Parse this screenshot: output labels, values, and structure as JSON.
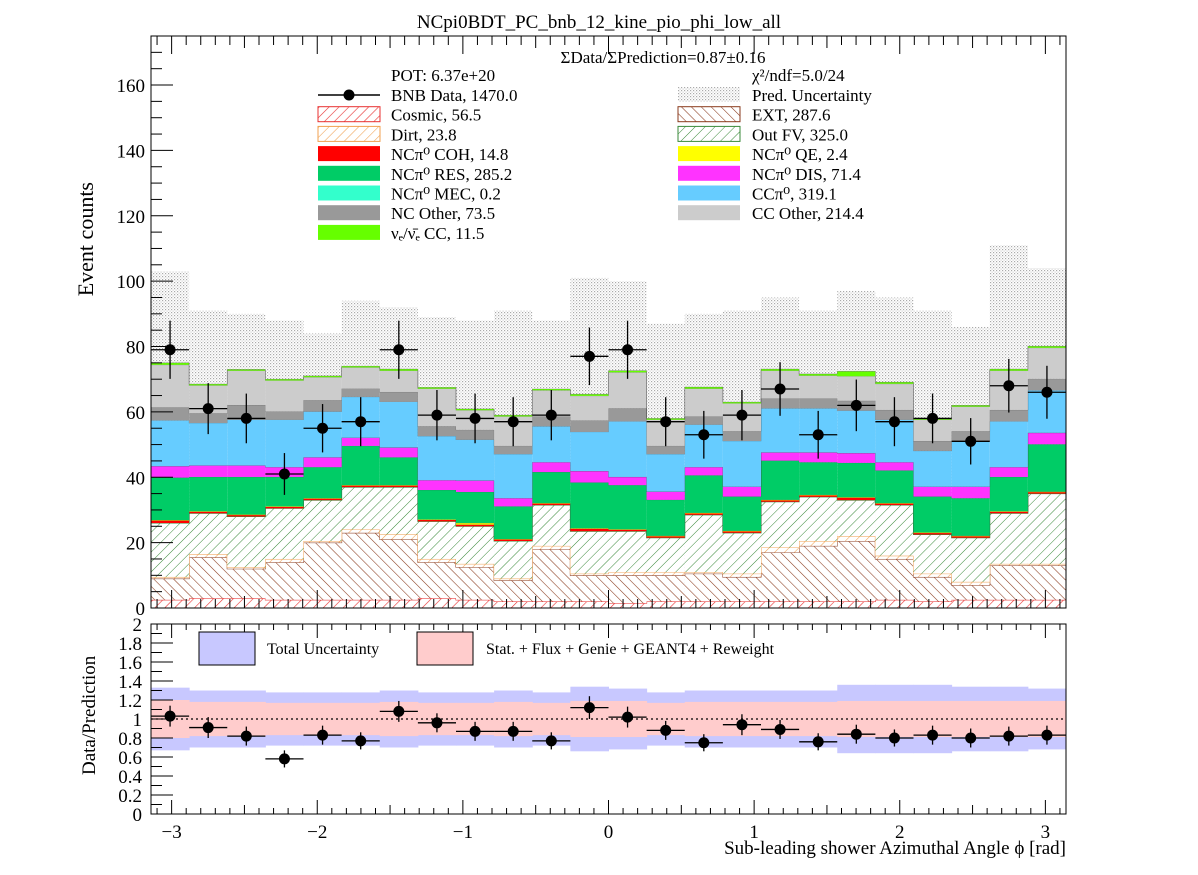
{
  "chart_data": [
    {
      "type": "bar",
      "title": "NCpi0BDT_PC_bnb_12_kine_pio_phi_low_all",
      "xlabel": "Sub-leading shower Azimuthal Angle ϕ [rad]",
      "ylabel": "Event counts",
      "xlim": [
        -3.1416,
        3.1416
      ],
      "ylim": [
        0,
        175
      ],
      "bins": 24,
      "x_ticks": [
        -3,
        -2,
        -1,
        0,
        1,
        2,
        3
      ],
      "x_tick_labels": [
        "−3",
        "−2",
        "−1",
        "0",
        "1",
        "2",
        "3"
      ],
      "y_ticks": [
        0,
        20,
        40,
        60,
        80,
        100,
        120,
        140,
        160
      ],
      "y_tick_labels": [
        "0",
        "20",
        "40",
        "60",
        "80",
        "100",
        "120",
        "140",
        "160"
      ],
      "annotations": {
        "ratio_text": "ΣData/ΣPrediction=0.87±0.16",
        "pot": "POT: 6.37e+20",
        "chi2": "χ²/ndf=5.0/24"
      },
      "legend_placement": "top",
      "legend": [
        {
          "key": "data",
          "label": "BNB Data, 1470.0",
          "style": "marker",
          "color": "#000000"
        },
        {
          "key": "unc",
          "label": "Pred. Uncertainty",
          "style": "dots",
          "color": "#bbbbbb"
        },
        {
          "key": "cosmic",
          "label": "Cosmic, 56.5",
          "style": "hatch",
          "color": "#e83030"
        },
        {
          "key": "ext",
          "label": "EXT, 287.6",
          "style": "hatch",
          "color": "#8a3a1c"
        },
        {
          "key": "dirt",
          "label": "Dirt, 23.8",
          "style": "hatch",
          "color": "#f0a050"
        },
        {
          "key": "outfv",
          "label": "Out FV, 325.0",
          "style": "hatch",
          "color": "#3a8a3a"
        },
        {
          "key": "coh",
          "label": "NCπ⁰ COH,  14.8",
          "style": "fill",
          "color": "#ff0000"
        },
        {
          "key": "qe",
          "label": "NCπ⁰ QE,  2.4",
          "style": "fill",
          "color": "#ffff00"
        },
        {
          "key": "res",
          "label": "NCπ⁰ RES,  285.2",
          "style": "fill",
          "color": "#00cc66"
        },
        {
          "key": "dis",
          "label": "NCπ⁰ DIS,  71.4",
          "style": "fill",
          "color": "#ff33ff"
        },
        {
          "key": "mec",
          "label": "NCπ⁰ MEC,  0.2",
          "style": "fill",
          "color": "#33ffcc"
        },
        {
          "key": "ccpi0",
          "label": "CCπ⁰, 319.1",
          "style": "fill",
          "color": "#66ccff"
        },
        {
          "key": "ncother",
          "label": "NC Other, 73.5",
          "style": "fill",
          "color": "#999999"
        },
        {
          "key": "ccother",
          "label": "CC Other, 214.4",
          "style": "fill",
          "color": "#cccccc"
        },
        {
          "key": "nue",
          "label": "νₑ/ν̄ₑ CC, 11.5",
          "style": "fill",
          "color": "#66ff00"
        }
      ],
      "series": [
        {
          "name": "Cosmic, 56.5",
          "key": "cosmic",
          "values": [
            2.5,
            3,
            3,
            2.5,
            2.5,
            2.5,
            2.5,
            3,
            2.5,
            2,
            2,
            2,
            1.5,
            2,
            2,
            2,
            2,
            2,
            2,
            2.5,
            2,
            2.5,
            2.5,
            2.5
          ]
        },
        {
          "name": "EXT, 287.6",
          "key": "ext",
          "values": [
            6.5,
            12.5,
            9,
            11.5,
            17.5,
            20.5,
            18.5,
            11,
            10,
            6.5,
            16,
            8,
            8.5,
            8,
            8.5,
            7.5,
            15,
            17,
            18.5,
            12.5,
            7.5,
            4.5,
            10.5,
            10.5
          ]
        },
        {
          "name": "Dirt, 23.8",
          "key": "dirt",
          "values": [
            0.5,
            1,
            0.5,
            1,
            0.5,
            1,
            1.5,
            1,
            1,
            0.5,
            1,
            0.5,
            1,
            1,
            0.5,
            1,
            1.5,
            1.5,
            1.5,
            1,
            1,
            1,
            0.5,
            0.5
          ]
        },
        {
          "name": "Out FV, 325.0",
          "key": "outfv",
          "values": [
            16.5,
            12.5,
            15.5,
            15.5,
            12.5,
            13,
            14.5,
            11.5,
            11.5,
            11.5,
            12.5,
            13,
            12.5,
            10.5,
            17.5,
            12.5,
            14,
            13.5,
            11,
            15.5,
            12,
            13.5,
            15.5,
            21.5
          ]
        },
        {
          "name": "NCπ⁰ COH,  14.8",
          "key": "coh",
          "values": [
            0.8,
            0.5,
            0.5,
            0.5,
            0.5,
            0.5,
            0.5,
            0.5,
            0.5,
            0.5,
            0.5,
            0.8,
            0.5,
            0.5,
            0.5,
            0.5,
            0.5,
            0.5,
            0.8,
            0.5,
            0.5,
            0.5,
            0.5,
            0.5
          ]
        },
        {
          "name": "NCπ⁰ QE,  2.4",
          "key": "qe",
          "values": [
            0.1,
            0.1,
            0.1,
            0.1,
            0.1,
            0.1,
            0.1,
            0.1,
            0.5,
            0.1,
            0.1,
            0.1,
            0.1,
            0.1,
            0.1,
            0.1,
            0.1,
            0.1,
            0.1,
            0.1,
            0.1,
            0.1,
            0.1,
            0.1
          ]
        },
        {
          "name": "NCπ⁰ RES,  285.2",
          "key": "res",
          "values": [
            13,
            10.5,
            11.5,
            9,
            9.5,
            12,
            8.5,
            9,
            9.5,
            10,
            9.5,
            14,
            13.5,
            11,
            11.5,
            10.5,
            12,
            10,
            10.5,
            10,
            11,
            11.5,
            10.5,
            14.5
          ]
        },
        {
          "name": "NCπ⁰ DIS,  71.4",
          "key": "dis",
          "values": [
            3.5,
            3.5,
            3.5,
            3,
            3,
            2.5,
            3,
            3,
            3.5,
            2.5,
            3,
            3.5,
            2.5,
            2.5,
            2.5,
            3,
            2.5,
            3,
            3,
            2.5,
            3,
            3.5,
            3,
            3.5
          ]
        },
        {
          "name": "NCπ⁰ MEC,  0.2",
          "key": "mec",
          "values": [
            0,
            0,
            0,
            0,
            0,
            0,
            0,
            0,
            0,
            0,
            0,
            0,
            0,
            0,
            0,
            0,
            0,
            0,
            0,
            0,
            0,
            0,
            0,
            0
          ]
        },
        {
          "name": "CCπ⁰, 319.1",
          "key": "ccpi0",
          "values": [
            14,
            13,
            14,
            14.5,
            14,
            12.5,
            14,
            13.5,
            12.5,
            13.5,
            11,
            12,
            17,
            11.5,
            13,
            14,
            13.5,
            13.5,
            13,
            13,
            11,
            14,
            14,
            13
          ]
        },
        {
          "name": "NC Other, 73.5",
          "key": "ncother",
          "values": [
            4,
            3,
            4.5,
            2.5,
            3.5,
            2.5,
            3,
            3,
            3,
            2.5,
            3,
            3.5,
            4,
            2.5,
            2.5,
            3,
            3,
            3,
            3,
            3,
            3,
            3,
            3.5,
            3.5
          ]
        },
        {
          "name": "CC Other, 214.4",
          "key": "ccother",
          "values": [
            13,
            8.5,
            10.5,
            9.5,
            7,
            6.5,
            6.5,
            11.5,
            6,
            9,
            8,
            7.5,
            11,
            8,
            8.5,
            8.5,
            8.5,
            7,
            7.5,
            8,
            6.5,
            7.5,
            12,
            9.5
          ]
        },
        {
          "name": "νₑ/ν̄ₑ CC, 11.5",
          "key": "nue",
          "values": [
            0.6,
            0.4,
            0.4,
            0.4,
            0.4,
            0.4,
            0.5,
            0.4,
            0.4,
            0.4,
            0.4,
            0.5,
            0.5,
            0.4,
            0.5,
            0.4,
            0.5,
            0.5,
            1.5,
            0.5,
            0.5,
            0.4,
            0.5,
            0.5
          ]
        },
        {
          "name": "Pred. Uncertainty",
          "key": "unc_up",
          "values": [
            103,
            91,
            90,
            88,
            84,
            94,
            92,
            89,
            88,
            91,
            88,
            101,
            100,
            87,
            90,
            91,
            95,
            91,
            97,
            95,
            91,
            86,
            111,
            104
          ]
        },
        {
          "name": "BNB Data, 1470.0",
          "key": "data",
          "values": [
            79,
            61,
            58,
            41,
            55,
            57,
            79,
            59,
            58,
            57,
            59,
            77,
            79,
            57,
            53,
            59,
            67,
            53,
            62,
            57,
            58,
            51,
            68,
            66
          ],
          "errors": [
            8.9,
            7.8,
            7.6,
            6.4,
            7.4,
            7.5,
            8.9,
            7.7,
            7.6,
            7.5,
            7.7,
            8.8,
            8.9,
            7.5,
            7.3,
            7.7,
            8.2,
            7.3,
            7.9,
            7.5,
            7.6,
            7.1,
            8.2,
            8.1
          ]
        }
      ]
    },
    {
      "type": "scatter",
      "xlabel": "",
      "ylabel": "Data/Prediction",
      "xlim": [
        -3.1416,
        3.1416
      ],
      "ylim": [
        0,
        2
      ],
      "y_ticks": [
        0,
        0.2,
        0.4,
        0.6,
        0.8,
        1,
        1.2,
        1.4,
        1.6,
        1.8,
        2
      ],
      "y_tick_labels": [
        "0",
        "0.2",
        "0.4",
        "0.6",
        "0.8",
        "1",
        "1.2",
        "1.4",
        "1.6",
        "1.8",
        "2"
      ],
      "legend": [
        {
          "key": "total",
          "label": "Total Uncertainty",
          "color": "#c8c8ff"
        },
        {
          "key": "stat",
          "label": "Stat. + Flux + Genie + GEANT4 + Reweight",
          "color": "#ffcccc"
        }
      ],
      "series": [
        {
          "name": "Total Uncertainty",
          "key": "total_unc",
          "values": [
            0.33,
            0.3,
            0.3,
            0.28,
            0.28,
            0.28,
            0.3,
            0.28,
            0.28,
            0.3,
            0.28,
            0.34,
            0.32,
            0.28,
            0.3,
            0.3,
            0.3,
            0.3,
            0.36,
            0.36,
            0.36,
            0.34,
            0.34,
            0.32
          ]
        },
        {
          "name": "Stat. + Flux + Genie + GEANT4 + Reweight",
          "key": "stat_unc",
          "values": [
            0.2,
            0.18,
            0.18,
            0.17,
            0.17,
            0.17,
            0.18,
            0.17,
            0.17,
            0.18,
            0.17,
            0.19,
            0.19,
            0.17,
            0.18,
            0.18,
            0.18,
            0.18,
            0.19,
            0.19,
            0.19,
            0.19,
            0.19,
            0.19
          ]
        },
        {
          "name": "Data/Prediction",
          "key": "ratio",
          "values": [
            1.03,
            0.91,
            0.82,
            0.58,
            0.83,
            0.77,
            1.08,
            0.96,
            0.87,
            0.87,
            0.77,
            1.12,
            1.02,
            0.88,
            0.75,
            0.94,
            0.89,
            0.76,
            0.84,
            0.8,
            0.83,
            0.8,
            0.82,
            0.83
          ],
          "errors": [
            0.11,
            0.11,
            0.1,
            0.09,
            0.1,
            0.09,
            0.11,
            0.1,
            0.1,
            0.1,
            0.09,
            0.12,
            0.11,
            0.1,
            0.09,
            0.11,
            0.1,
            0.09,
            0.1,
            0.09,
            0.1,
            0.1,
            0.1,
            0.1
          ]
        }
      ]
    }
  ]
}
